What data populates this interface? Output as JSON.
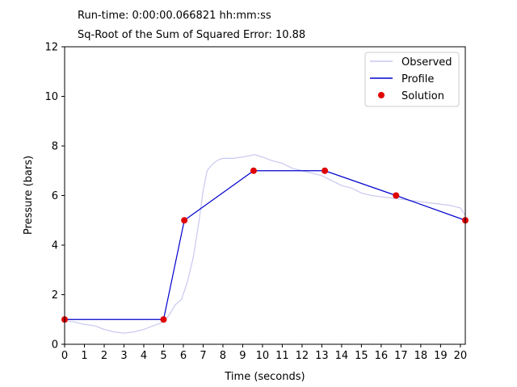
{
  "header": {
    "runtime": "Run-time: 0:00:00.066821 hh:mm:ss",
    "error": "Sq-Root of the Sum of Squared Error: 10.88"
  },
  "chart_data": {
    "type": "line",
    "xlabel": "Time (seconds)",
    "ylabel": "Pressure (bars)",
    "xlim": [
      0,
      20.25
    ],
    "ylim": [
      0,
      12
    ],
    "xticks": [
      0,
      1,
      2,
      3,
      4,
      5,
      6,
      7,
      8,
      9,
      10,
      11,
      12,
      13,
      14,
      15,
      16,
      17,
      18,
      19,
      20
    ],
    "yticks": [
      0,
      2,
      4,
      6,
      8,
      10,
      12
    ],
    "grid": false,
    "legend": {
      "placement": "top-right",
      "entries": [
        "Observed",
        "Profile",
        "Solution"
      ]
    },
    "colors": {
      "observed": "#c8c8f0",
      "profile": "#0000cc",
      "solution": "#e00000"
    },
    "series": [
      {
        "name": "Observed",
        "x": [
          0,
          0.5,
          1,
          1.5,
          2,
          2.5,
          3,
          3.5,
          4,
          4.5,
          5,
          5.3,
          5.6,
          5.9,
          6.2,
          6.5,
          6.8,
          7,
          7.2,
          7.4,
          7.6,
          7.8,
          8,
          8.5,
          9,
          9.3,
          9.6,
          10,
          10.5,
          11,
          11.5,
          12,
          12.5,
          13,
          13.5,
          14,
          14.5,
          15,
          15.5,
          16,
          16.5,
          17,
          17.5,
          18,
          18.5,
          19,
          19.5,
          20,
          20.25
        ],
        "y": [
          0.95,
          0.9,
          0.8,
          0.75,
          0.6,
          0.5,
          0.45,
          0.5,
          0.6,
          0.75,
          0.9,
          1.2,
          1.6,
          1.8,
          2.5,
          3.5,
          5.0,
          6.2,
          7.0,
          7.2,
          7.35,
          7.45,
          7.5,
          7.5,
          7.55,
          7.6,
          7.65,
          7.55,
          7.4,
          7.3,
          7.1,
          7.0,
          6.9,
          6.8,
          6.6,
          6.4,
          6.3,
          6.1,
          6.0,
          5.95,
          5.9,
          5.85,
          5.8,
          5.75,
          5.7,
          5.65,
          5.6,
          5.5,
          5.2
        ]
      },
      {
        "name": "Profile",
        "x": [
          0,
          5,
          6.05,
          9.55,
          13.15,
          16.75,
          20.25
        ],
        "y": [
          1,
          1,
          5,
          7,
          7,
          6,
          5
        ]
      },
      {
        "name": "Solution",
        "x": [
          0,
          5,
          6.05,
          9.55,
          13.15,
          16.75,
          20.25
        ],
        "y": [
          1,
          1,
          5,
          7,
          7,
          6,
          5
        ]
      }
    ]
  }
}
